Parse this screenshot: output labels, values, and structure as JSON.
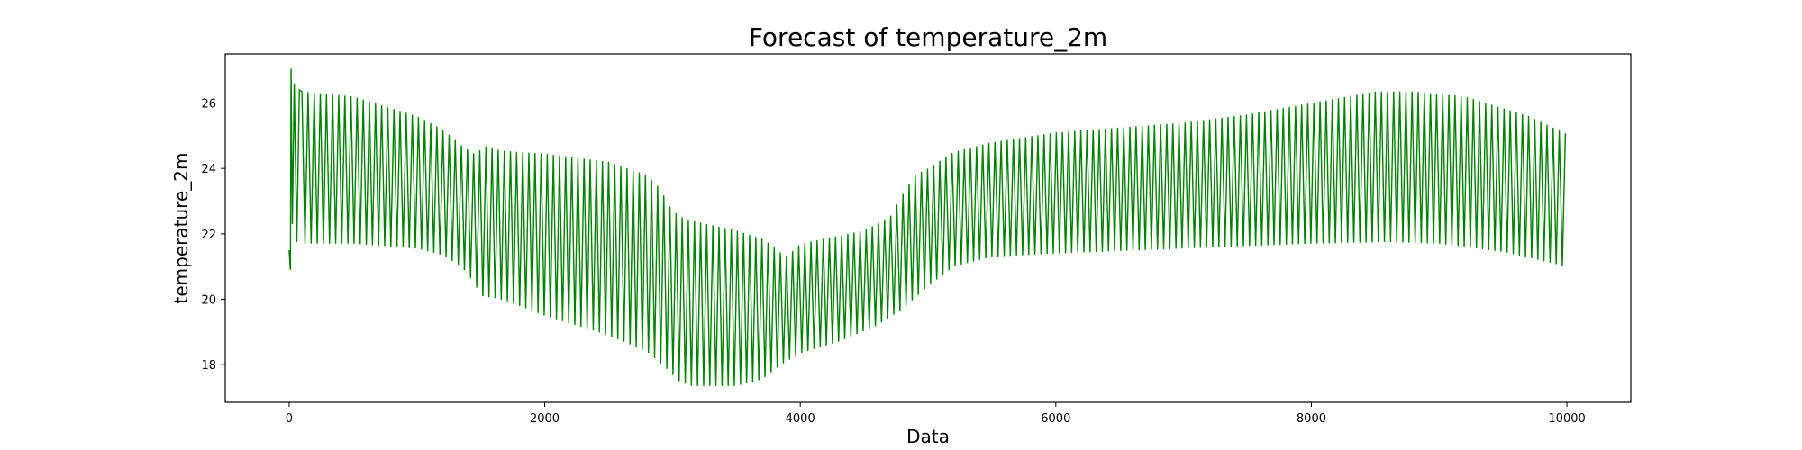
{
  "chart_data": {
    "type": "line",
    "title": "Forecast of temperature_2m",
    "xlabel": "Data",
    "ylabel": "temperature_2m",
    "xlim": [
      -500,
      10500
    ],
    "ylim": [
      16.85,
      27.5
    ],
    "x_ticks": [
      0,
      2000,
      4000,
      6000,
      8000,
      10000
    ],
    "x_tick_labels": [
      "0",
      "2000",
      "4000",
      "6000",
      "8000",
      "10000"
    ],
    "y_ticks": [
      18,
      20,
      22,
      24,
      26
    ],
    "y_tick_labels": [
      "18",
      "20",
      "22",
      "24",
      "26"
    ],
    "grid": false,
    "legend": "none",
    "series_color": "#008000",
    "oscillation_period": 48,
    "series": [
      {
        "start_points": [
          [
            0,
            21.5
          ],
          [
            10,
            20.9
          ],
          [
            15,
            27.05
          ],
          [
            25,
            22.3
          ],
          [
            40,
            26.6
          ],
          [
            60,
            21.75
          ],
          [
            80,
            26.4
          ]
        ],
        "upper_envelope": [
          [
            100,
            26.35
          ],
          [
            500,
            26.2
          ],
          [
            1000,
            25.6
          ],
          [
            1200,
            25.2
          ],
          [
            1350,
            24.7
          ],
          [
            1450,
            24.45
          ],
          [
            1550,
            24.7
          ],
          [
            1650,
            24.55
          ],
          [
            1800,
            24.5
          ],
          [
            2000,
            24.45
          ],
          [
            2500,
            24.2
          ],
          [
            2800,
            23.8
          ],
          [
            2900,
            23.4
          ],
          [
            3000,
            22.7
          ],
          [
            3100,
            22.45
          ],
          [
            3500,
            22.1
          ],
          [
            3700,
            21.85
          ],
          [
            3800,
            21.6
          ],
          [
            3880,
            21.3
          ],
          [
            3950,
            21.5
          ],
          [
            4000,
            21.7
          ],
          [
            4500,
            22.1
          ],
          [
            4700,
            22.5
          ],
          [
            4800,
            23.2
          ],
          [
            4900,
            23.8
          ],
          [
            5000,
            24.0
          ],
          [
            5200,
            24.5
          ],
          [
            5500,
            24.8
          ],
          [
            6000,
            25.1
          ],
          [
            7000,
            25.4
          ],
          [
            7500,
            25.65
          ],
          [
            8000,
            26.0
          ],
          [
            8500,
            26.35
          ],
          [
            8800,
            26.35
          ],
          [
            9200,
            26.2
          ],
          [
            9700,
            25.6
          ],
          [
            10000,
            25.05
          ]
        ],
        "lower_envelope": [
          [
            100,
            21.7
          ],
          [
            500,
            21.7
          ],
          [
            1000,
            21.55
          ],
          [
            1200,
            21.35
          ],
          [
            1350,
            21.0
          ],
          [
            1450,
            20.5
          ],
          [
            1500,
            20.1
          ],
          [
            1600,
            20.05
          ],
          [
            1700,
            19.95
          ],
          [
            2000,
            19.5
          ],
          [
            2500,
            18.9
          ],
          [
            2800,
            18.4
          ],
          [
            2950,
            17.9
          ],
          [
            3050,
            17.5
          ],
          [
            3150,
            17.35
          ],
          [
            3500,
            17.35
          ],
          [
            3700,
            17.55
          ],
          [
            3850,
            18.0
          ],
          [
            4000,
            18.35
          ],
          [
            4300,
            18.7
          ],
          [
            4600,
            19.2
          ],
          [
            4800,
            19.7
          ],
          [
            5000,
            20.4
          ],
          [
            5200,
            21.0
          ],
          [
            5500,
            21.3
          ],
          [
            6000,
            21.4
          ],
          [
            7000,
            21.55
          ],
          [
            8000,
            21.7
          ],
          [
            8600,
            21.75
          ],
          [
            9000,
            21.7
          ],
          [
            9500,
            21.45
          ],
          [
            10000,
            21.0
          ]
        ]
      }
    ]
  }
}
